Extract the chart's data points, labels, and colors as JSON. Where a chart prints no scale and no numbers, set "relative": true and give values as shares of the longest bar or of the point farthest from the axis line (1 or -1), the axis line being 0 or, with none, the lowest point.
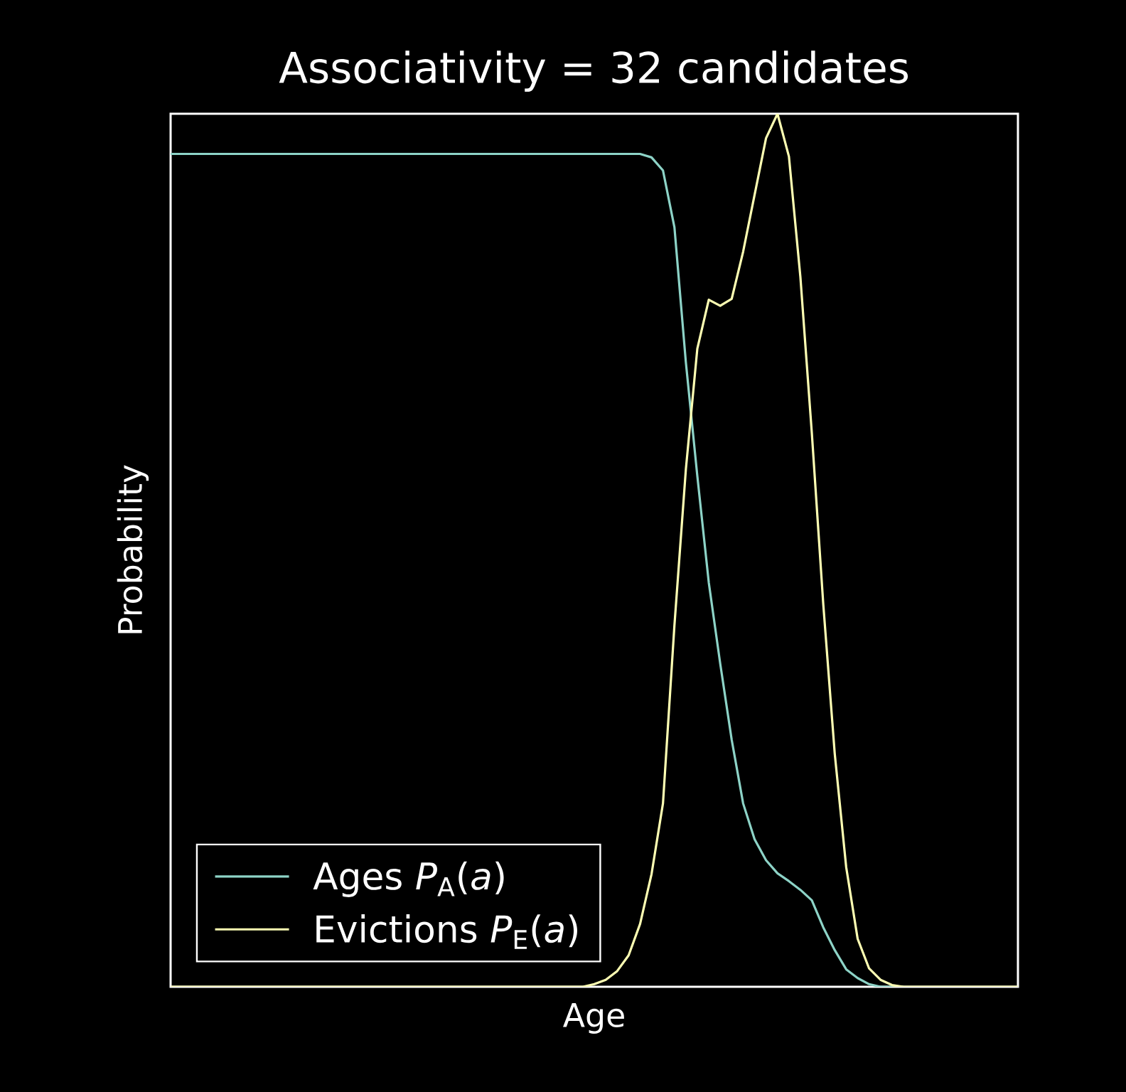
{
  "chart_data": {
    "type": "line",
    "relative": true,
    "title": "Associativity = 32 candidates",
    "xlabel": "Age",
    "ylabel": "Probability",
    "legend": "bottom left",
    "categories": [
      null,
      null,
      null,
      null,
      null,
      null,
      null,
      null,
      null,
      null,
      null,
      null,
      null,
      null,
      null,
      null,
      null,
      null,
      null,
      null,
      null,
      null,
      null,
      null,
      null,
      null,
      null,
      null,
      null,
      null,
      null,
      null,
      null,
      null,
      null,
      null,
      null,
      null,
      null,
      null,
      null,
      null,
      null,
      null,
      null,
      null,
      null,
      null,
      null,
      null,
      null,
      null,
      null,
      null,
      null,
      null,
      null,
      null,
      null,
      null,
      null,
      null,
      null,
      null,
      null,
      null,
      null,
      null,
      null,
      null,
      null,
      null,
      null,
      null,
      null
    ],
    "series": [
      {
        "name": "Ages *P*$_{A}$(*a*)",
        "color": "#8dd3c7",
        "values": [
          0.954,
          0.954,
          0.954,
          0.954,
          0.954,
          0.954,
          0.954,
          0.954,
          0.954,
          0.954,
          0.954,
          0.954,
          0.954,
          0.954,
          0.954,
          0.954,
          0.954,
          0.954,
          0.954,
          0.954,
          0.954,
          0.954,
          0.954,
          0.954,
          0.954,
          0.954,
          0.954,
          0.954,
          0.954,
          0.954,
          0.954,
          0.954,
          0.954,
          0.954,
          0.954,
          0.954,
          0.954,
          0.954,
          0.954,
          0.954,
          0.954,
          0.954,
          0.95,
          0.935,
          0.87,
          0.715,
          0.585,
          0.463,
          0.37,
          0.283,
          0.21,
          0.169,
          0.145,
          0.13,
          0.121,
          0.111,
          0.099,
          0.068,
          0.042,
          0.02,
          0.01,
          0.003,
          0,
          0,
          0,
          null,
          null,
          null,
          null,
          null,
          null,
          null,
          null,
          null,
          null
        ]
      },
      {
        "name": "Evictions *P*$_{E}$(*a*)",
        "color": "#feffb3",
        "values": [
          0,
          0,
          0,
          0,
          0,
          0,
          0,
          0,
          0,
          0,
          0,
          0,
          0,
          0,
          0,
          0,
          0,
          0,
          0,
          0,
          0,
          0,
          0,
          0,
          0,
          0,
          0,
          0,
          0,
          0,
          0,
          0,
          0,
          0,
          0,
          0,
          0,
          0.003,
          0.008,
          0.018,
          0.036,
          0.072,
          0.129,
          0.21,
          0.414,
          0.593,
          0.731,
          0.787,
          0.78,
          0.788,
          0.842,
          0.907,
          0.972,
          1,
          0.951,
          0.813,
          0.634,
          0.438,
          0.267,
          0.137,
          0.055,
          0.021,
          0.008,
          0.002,
          0,
          0,
          0,
          0,
          0,
          0,
          0,
          0,
          0,
          0,
          0
        ]
      }
    ]
  }
}
